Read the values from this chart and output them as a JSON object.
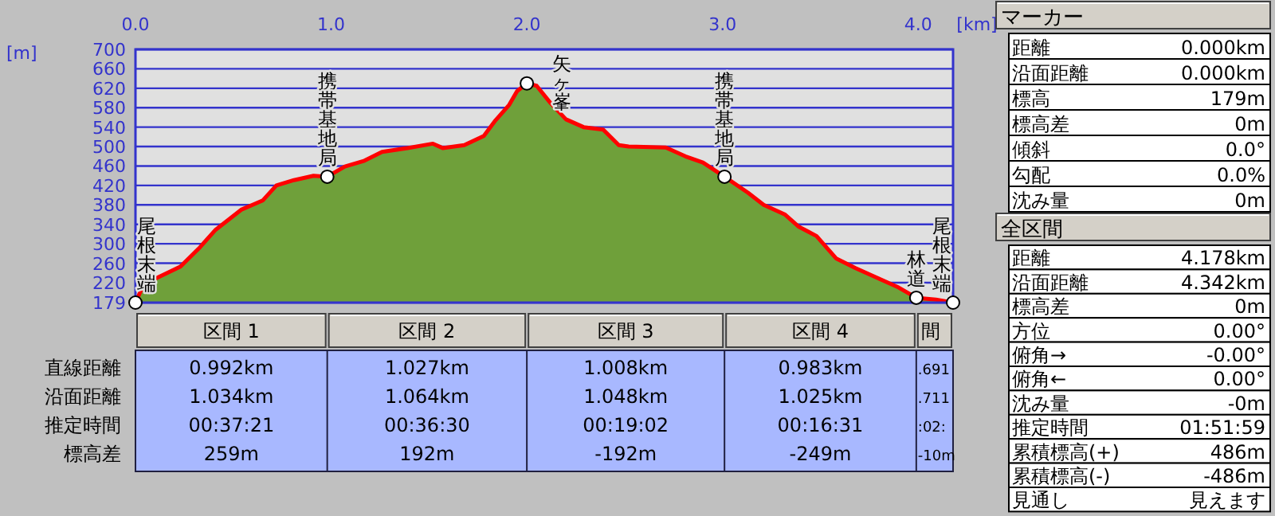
{
  "chart_data": [
    {
      "type": "area",
      "x": [
        0,
        0.04,
        0.12,
        0.23,
        0.33,
        0.41,
        0.54,
        0.65,
        0.72,
        0.81,
        0.91,
        0.98,
        1.07,
        1.17,
        1.26,
        1.39,
        1.52,
        1.57,
        1.68,
        1.78,
        1.84,
        1.91,
        1.95,
        2.0,
        2.05,
        2.12,
        2.2,
        2.29,
        2.39,
        2.47,
        2.52,
        2.71,
        2.81,
        2.9,
        3.01,
        3.13,
        3.21,
        3.32,
        3.39,
        3.48,
        3.58,
        3.68,
        3.8,
        3.9,
        3.99,
        4.09,
        4.178
      ],
      "series": [
        {
          "type": "area",
          "color": "#6fa03a",
          "values": [
            179,
            215,
            232,
            253,
            293,
            329,
            370,
            389,
            420,
            431,
            440,
            438,
            459,
            471,
            489,
            497,
            506,
            497,
            503,
            522,
            554,
            586,
            614,
            630,
            625,
            590,
            556,
            540,
            535,
            503,
            500,
            498,
            480,
            467,
            438,
            405,
            380,
            360,
            335,
            316,
            270,
            250,
            228,
            210,
            189,
            185,
            179
          ]
        }
      ],
      "xlim": [
        0,
        4.178
      ],
      "xticks": [
        {
          "value": 0,
          "label": "0.0"
        },
        {
          "value": 1,
          "label": "1.0"
        },
        {
          "value": 2,
          "label": "2.0"
        },
        {
          "value": 3,
          "label": "3.0"
        },
        {
          "value": 4,
          "label": "4.0"
        }
      ],
      "xlabel": "[km]",
      "ylabel": "[m]",
      "ylim": [
        179,
        700
      ],
      "yticks": [
        179,
        220,
        260,
        300,
        340,
        380,
        420,
        460,
        500,
        540,
        580,
        620,
        660,
        700
      ],
      "grid": "y",
      "annotations": [
        {
          "text": "尾根末端",
          "x": 0,
          "y": 179
        },
        {
          "text": "携帯基地局",
          "x": 0.98,
          "y": 438
        },
        {
          "text": "矢ヶ峯",
          "x": 2.0,
          "y": 630
        },
        {
          "text": "携帯基地局",
          "x": 3.01,
          "y": 438
        },
        {
          "text": "林道",
          "x": 3.99,
          "y": 189
        },
        {
          "text": "尾根末端",
          "x": 4.178,
          "y": 179
        }
      ]
    },
    {
      "type": "other",
      "categories": [
        "区間 1",
        "区間 2",
        "区間 3",
        "区間 4",
        "間"
      ],
      "annotations": [
        "直線距離",
        "0.992km",
        "1.027km",
        "1.008km",
        "0.983km",
        ".691",
        "沿面距離",
        "1.034km",
        "1.064km",
        "1.048km",
        "1.025km",
        ".711",
        "推定時間",
        "00:37:21",
        "00:36:30",
        "00:19:02",
        "00:16:31",
        ":02:",
        "標高差",
        "259m",
        "192m",
        "-192m",
        "-249m",
        "-10m"
      ]
    },
    {
      "type": "other",
      "title": "マーカー",
      "annotations": [
        "距離",
        "0.000km",
        "沿面距離",
        "0.000km",
        "標高",
        "179m",
        "標高差",
        "0m",
        "傾斜",
        "0.0°",
        "勾配",
        "0.0%",
        "沈み量",
        "0m"
      ]
    },
    {
      "type": "other",
      "title": "全区間",
      "annotations": [
        "距離",
        "4.178km",
        "沿面距離",
        "4.342km",
        "標高差",
        "0m",
        "方位",
        "0.00°",
        "俯角→",
        "-0.00°",
        "俯角←",
        "0.00°",
        "沈み量",
        "-0m",
        "推定時間",
        "01:51:59",
        "累積標高(+)",
        "486m",
        "累積標高(-)",
        "-486m",
        "見通し",
        "見えます"
      ]
    }
  ]
}
